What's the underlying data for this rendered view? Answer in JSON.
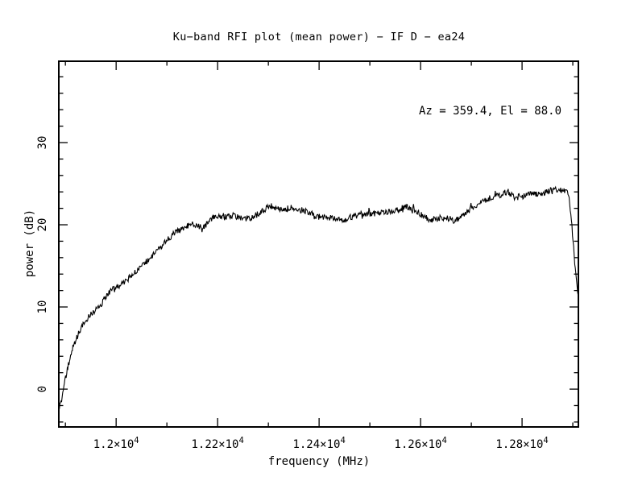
{
  "window": {
    "background_color": "#ffffff",
    "foreground_color": "#000000"
  },
  "chart_data": {
    "type": "line",
    "title": "Ku−band RFI plot (mean power) − IF D − ea24",
    "annotation": "Az = 359.4, El = 88.0",
    "xlabel": "frequency (MHz)",
    "ylabel": "power (dB)",
    "xlim": [
      11887,
      12911
    ],
    "ylim": [
      -4.6,
      39.9
    ],
    "x_major_ticks": [
      12000,
      12200,
      12400,
      12600,
      12800
    ],
    "x_tick_labels": [
      {
        "mantissa": "1.2×10",
        "exponent": "4"
      },
      {
        "mantissa": "1.22×10",
        "exponent": "4"
      },
      {
        "mantissa": "1.24×10",
        "exponent": "4"
      },
      {
        "mantissa": "1.26×10",
        "exponent": "4"
      },
      {
        "mantissa": "1.28×10",
        "exponent": "4"
      }
    ],
    "x_minor_step": 100,
    "y_major_ticks": [
      0,
      10,
      20,
      30
    ],
    "y_tick_labels": [
      "0",
      "10",
      "20",
      "30"
    ],
    "y_minor_step": 2,
    "grid": false,
    "legend": null,
    "line_color": "#000000",
    "noise_db": 0.38,
    "series": [
      {
        "name": "mean power",
        "points": [
          [
            11887,
            -2.6
          ],
          [
            11892,
            -1.4
          ],
          [
            11898,
            0.6
          ],
          [
            11906,
            3.0
          ],
          [
            11914,
            4.9
          ],
          [
            11922,
            6.2
          ],
          [
            11930,
            7.3
          ],
          [
            11938,
            8.2
          ],
          [
            11946,
            8.9
          ],
          [
            11954,
            9.4
          ],
          [
            11962,
            9.7
          ],
          [
            11970,
            10.1
          ],
          [
            11977,
            11.0
          ],
          [
            11985,
            11.7
          ],
          [
            11993,
            12.1
          ],
          [
            12009,
            12.7
          ],
          [
            12025,
            13.5
          ],
          [
            12041,
            14.4
          ],
          [
            12057,
            15.4
          ],
          [
            12073,
            16.3
          ],
          [
            12089,
            17.4
          ],
          [
            12104,
            18.4
          ],
          [
            12120,
            19.2
          ],
          [
            12136,
            19.8
          ],
          [
            12152,
            20.1
          ],
          [
            12165,
            19.7
          ],
          [
            12176,
            19.8
          ],
          [
            12184,
            20.6
          ],
          [
            12200,
            21.0
          ],
          [
            12216,
            20.9
          ],
          [
            12231,
            21.1
          ],
          [
            12247,
            20.9
          ],
          [
            12263,
            20.7
          ],
          [
            12279,
            21.3
          ],
          [
            12303,
            22.3
          ],
          [
            12319,
            21.9
          ],
          [
            12335,
            21.8
          ],
          [
            12343,
            22.2
          ],
          [
            12358,
            21.9
          ],
          [
            12382,
            21.5
          ],
          [
            12398,
            21.0
          ],
          [
            12414,
            20.9
          ],
          [
            12430,
            20.8
          ],
          [
            12446,
            20.4
          ],
          [
            12462,
            20.9
          ],
          [
            12485,
            21.3
          ],
          [
            12509,
            21.4
          ],
          [
            12533,
            21.5
          ],
          [
            12557,
            21.9
          ],
          [
            12573,
            22.2
          ],
          [
            12589,
            21.7
          ],
          [
            12604,
            21.1
          ],
          [
            12620,
            20.6
          ],
          [
            12636,
            20.8
          ],
          [
            12652,
            20.9
          ],
          [
            12668,
            20.4
          ],
          [
            12684,
            21.3
          ],
          [
            12708,
            22.4
          ],
          [
            12723,
            22.9
          ],
          [
            12739,
            23.3
          ],
          [
            12755,
            23.6
          ],
          [
            12771,
            24.0
          ],
          [
            12787,
            23.3
          ],
          [
            12803,
            23.6
          ],
          [
            12819,
            23.7
          ],
          [
            12835,
            23.8
          ],
          [
            12851,
            24.0
          ],
          [
            12863,
            24.5
          ],
          [
            12874,
            24.2
          ],
          [
            12885,
            24.2
          ],
          [
            12892,
            23.8
          ],
          [
            12898,
            20.0
          ],
          [
            12903,
            16.0
          ],
          [
            12908,
            12.5
          ],
          [
            12911,
            11.3
          ]
        ]
      }
    ]
  }
}
